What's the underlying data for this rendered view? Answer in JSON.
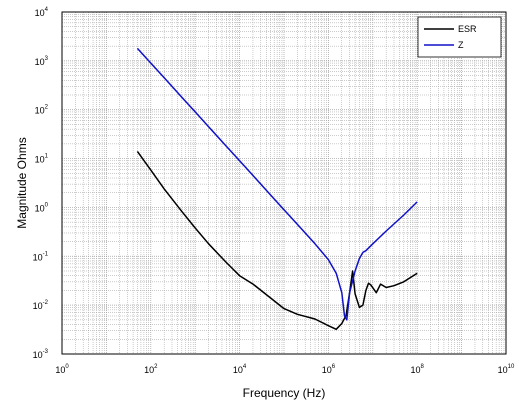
{
  "chart_data": {
    "type": "line",
    "scale": {
      "x": "log",
      "y": "log"
    },
    "xlabel": "Frequency (Hz)",
    "ylabel": "Magnitude Ohms",
    "xlim": [
      1,
      10000000000
    ],
    "ylim": [
      0.001,
      10000
    ],
    "x_tick_labels": [
      "10^0",
      "10^2",
      "10^4",
      "10^6",
      "10^8",
      "10^10"
    ],
    "y_tick_labels": [
      "10^-3",
      "10^-2",
      "10^-1",
      "10^0",
      "10^1",
      "10^2",
      "10^3",
      "10^4"
    ],
    "grid": "major-and-minor, dotted",
    "legend": {
      "position": "top-right"
    },
    "series": [
      {
        "name": "ESR",
        "color": "#000000",
        "points": [
          [
            50,
            14
          ],
          [
            100,
            5.8
          ],
          [
            200,
            2.4
          ],
          [
            500,
            0.83
          ],
          [
            1000,
            0.38
          ],
          [
            2000,
            0.18
          ],
          [
            5000,
            0.075
          ],
          [
            10000,
            0.04
          ],
          [
            20000,
            0.027
          ],
          [
            50000,
            0.014
          ],
          [
            100000,
            0.0085
          ],
          [
            200000,
            0.0065
          ],
          [
            500000,
            0.0052
          ],
          [
            1000000,
            0.0038
          ],
          [
            1500000,
            0.0032
          ],
          [
            2000000,
            0.0042
          ],
          [
            2500000,
            0.0062
          ],
          [
            3000000,
            0.018
          ],
          [
            3500000,
            0.05
          ],
          [
            4000000,
            0.017
          ],
          [
            5000000,
            0.009
          ],
          [
            6000000,
            0.01
          ],
          [
            7000000,
            0.02
          ],
          [
            8000000,
            0.028
          ],
          [
            9000000,
            0.026
          ],
          [
            12000000,
            0.018
          ],
          [
            15000000,
            0.027
          ],
          [
            20000000,
            0.023
          ],
          [
            30000000,
            0.025
          ],
          [
            50000000,
            0.03
          ],
          [
            100000000,
            0.045
          ]
        ]
      },
      {
        "name": "Z",
        "color": "#1010c8",
        "points": [
          [
            50,
            1800
          ],
          [
            100,
            900
          ],
          [
            200,
            450
          ],
          [
            500,
            180
          ],
          [
            1000,
            90
          ],
          [
            2000,
            45
          ],
          [
            5000,
            18
          ],
          [
            10000,
            9
          ],
          [
            20000,
            4.5
          ],
          [
            50000,
            1.8
          ],
          [
            100000,
            0.9
          ],
          [
            200000,
            0.45
          ],
          [
            500000,
            0.18
          ],
          [
            1000000,
            0.085
          ],
          [
            1500000,
            0.045
          ],
          [
            2000000,
            0.018
          ],
          [
            2300000,
            0.006
          ],
          [
            2600000,
            0.005
          ],
          [
            3000000,
            0.018
          ],
          [
            4000000,
            0.05
          ],
          [
            5000000,
            0.09
          ],
          [
            6000000,
            0.12
          ],
          [
            7000000,
            0.13
          ],
          [
            10000000,
            0.18
          ],
          [
            20000000,
            0.33
          ],
          [
            50000000,
            0.7
          ],
          [
            100000000,
            1.3
          ]
        ]
      }
    ]
  }
}
